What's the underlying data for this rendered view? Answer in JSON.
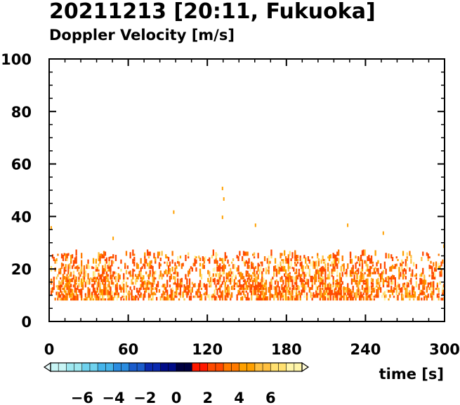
{
  "chart_data": {
    "type": "heatmap",
    "title": "20211213 [20:11, Fukuoka]",
    "subtitle": "Doppler Velocity [m/s]",
    "xlabel": "time [s]",
    "ylabel": "",
    "xlim": [
      0,
      300
    ],
    "ylim": [
      0,
      100
    ],
    "x_ticks": [
      "0",
      "60",
      "120",
      "180",
      "240",
      "300"
    ],
    "y_ticks": [
      "0",
      "20",
      "40",
      "60",
      "80",
      "100"
    ],
    "grid": false,
    "colorbar": {
      "orientation": "horizontal",
      "placement": "bottom-left",
      "range": [
        -8,
        8
      ],
      "tick_labels": [
        "−6",
        "−4",
        "−2",
        "0",
        "2",
        "4",
        "6"
      ],
      "tick_values": [
        -6,
        -4,
        -2,
        0,
        2,
        4,
        6
      ],
      "colors": [
        "#c8f5f5",
        "#9ee8f0",
        "#6fd2ee",
        "#45b4ea",
        "#2a8ce0",
        "#1a5ccc",
        "#0a2ab0",
        "#000c88",
        "#000040",
        "#ff1800",
        "#ff4a00",
        "#ff7a00",
        "#ffa000",
        "#ffc040",
        "#ffe070",
        "#fff5a8"
      ]
    },
    "echo_band": {
      "range_min_m": 8,
      "range_max_m": 26,
      "velocity_range_ms": [
        0,
        7
      ]
    },
    "sparse_echoes": [
      {
        "t": 1,
        "range": 35
      },
      {
        "t": 48,
        "range": 31
      },
      {
        "t": 94,
        "range": 41
      },
      {
        "t": 131,
        "range": 50
      },
      {
        "t": 132,
        "range": 46
      },
      {
        "t": 131,
        "range": 39
      },
      {
        "t": 156,
        "range": 36
      },
      {
        "t": 226,
        "range": 36
      },
      {
        "t": 253,
        "range": 33
      },
      {
        "t": 299,
        "range": 28
      }
    ]
  }
}
